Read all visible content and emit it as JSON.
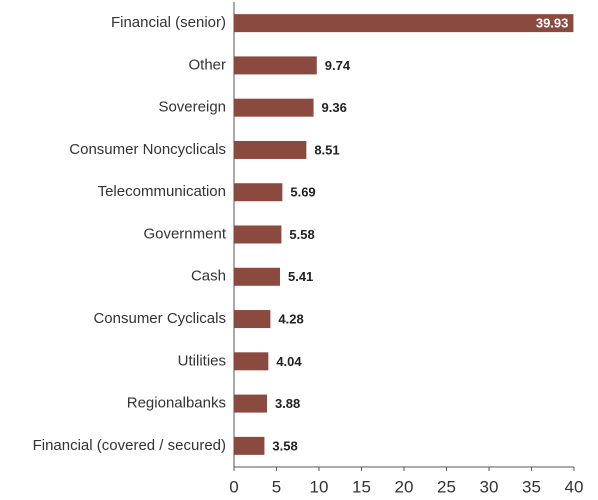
{
  "chart_data": {
    "type": "bar",
    "orientation": "horizontal",
    "categories": [
      "Financial (senior)",
      "Other",
      "Sovereign",
      "Consumer Noncyclicals",
      "Telecommunication",
      "Government",
      "Cash",
      "Consumer Cyclicals",
      "Utilities",
      "Regionalbanks",
      "Financial (covered / secured)"
    ],
    "values": [
      39.93,
      9.74,
      9.36,
      8.51,
      5.69,
      5.58,
      5.41,
      4.28,
      4.04,
      3.88,
      3.58
    ],
    "color": "#8b4a40",
    "xlim": [
      0,
      40
    ],
    "xticks": [
      0,
      5,
      10,
      15,
      20,
      25,
      30,
      35,
      40
    ],
    "grid": false
  }
}
